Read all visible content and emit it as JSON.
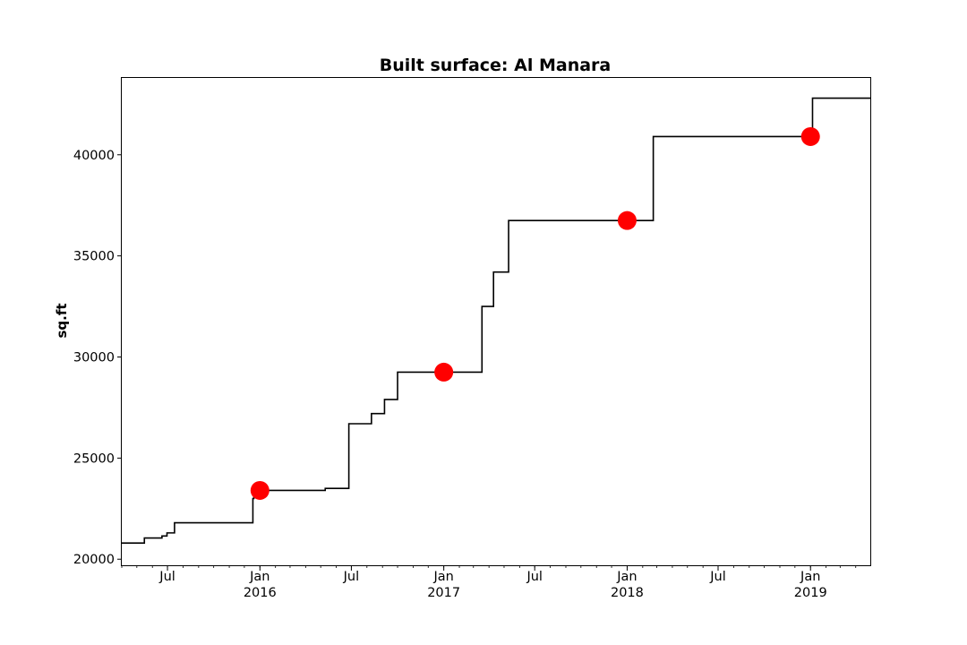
{
  "chart_data": {
    "type": "line",
    "title": "Built surface: Al Manara",
    "xlabel": "",
    "ylabel": "sq.ft",
    "xlim": [
      "2015-04-01",
      "2019-04-30"
    ],
    "ylim": [
      19700,
      43800
    ],
    "grid": false,
    "y_ticks": [
      20000,
      25000,
      30000,
      35000,
      40000
    ],
    "y_tick_labels": [
      "20000",
      "25000",
      "30000",
      "35000",
      "40000"
    ],
    "x_ticks": [
      {
        "date": "2015-07-01",
        "label": "Jul"
      },
      {
        "date": "2016-01-01",
        "label": "Jan",
        "year": "2016"
      },
      {
        "date": "2016-07-01",
        "label": "Jul"
      },
      {
        "date": "2017-01-01",
        "label": "Jan",
        "year": "2017"
      },
      {
        "date": "2017-07-01",
        "label": "Jul"
      },
      {
        "date": "2018-01-01",
        "label": "Jan",
        "year": "2018"
      },
      {
        "date": "2018-07-01",
        "label": "Jul"
      },
      {
        "date": "2019-01-01",
        "label": "Jan",
        "year": "2019"
      }
    ],
    "line_color": "#000000",
    "marker_color": "#ff0000",
    "series": [
      {
        "style": "step",
        "points": [
          {
            "x": "2015-04-01",
            "y": 20800
          },
          {
            "x": "2015-05-16",
            "y": 21050
          },
          {
            "x": "2015-06-20",
            "y": 21150
          },
          {
            "x": "2015-06-30",
            "y": 21300
          },
          {
            "x": "2015-07-15",
            "y": 21800
          },
          {
            "x": "2015-12-18",
            "y": 23000
          },
          {
            "x": "2015-12-20",
            "y": 23400
          },
          {
            "x": "2016-05-10",
            "y": 23500
          },
          {
            "x": "2016-06-26",
            "y": 26700
          },
          {
            "x": "2016-08-10",
            "y": 27200
          },
          {
            "x": "2016-09-05",
            "y": 27900
          },
          {
            "x": "2016-10-01",
            "y": 29250
          },
          {
            "x": "2017-03-18",
            "y": 32500
          },
          {
            "x": "2017-04-10",
            "y": 34200
          },
          {
            "x": "2017-05-10",
            "y": 36750
          },
          {
            "x": "2018-02-22",
            "y": 40900
          },
          {
            "x": "2019-01-05",
            "y": 42800
          },
          {
            "x": "2019-04-30",
            "y": 42800
          }
        ]
      },
      {
        "style": "markers",
        "points": [
          {
            "x": "2016-01-01",
            "y": 23400
          },
          {
            "x": "2017-01-01",
            "y": 29250
          },
          {
            "x": "2018-01-01",
            "y": 36750
          },
          {
            "x": "2019-01-01",
            "y": 40900
          }
        ]
      }
    ]
  }
}
